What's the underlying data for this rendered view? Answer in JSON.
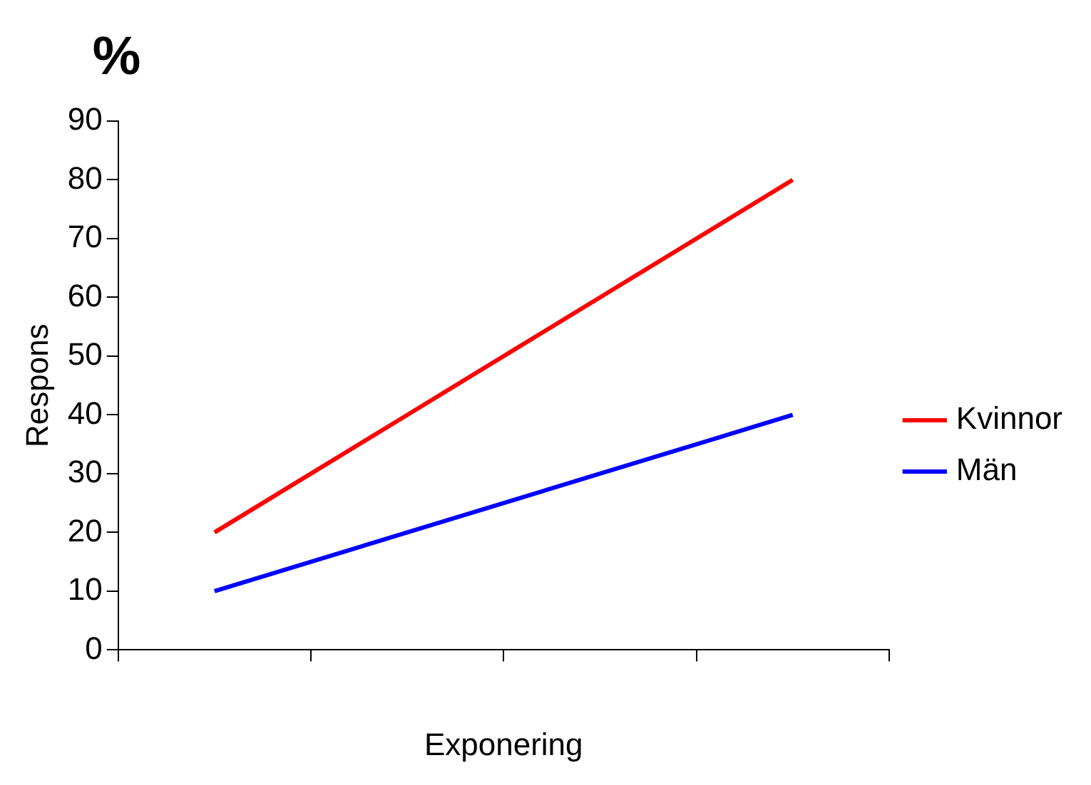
{
  "chart_data": {
    "type": "line",
    "title": "%",
    "xlabel": "Exponering",
    "ylabel": "Respons",
    "categories": [
      null,
      null,
      null,
      null
    ],
    "series": [
      {
        "name": "Kvinnor",
        "color": "#ff0000",
        "values": [
          20,
          40,
          60,
          80
        ]
      },
      {
        "name": "Män",
        "color": "#0000ff",
        "values": [
          10,
          20,
          30,
          40
        ]
      }
    ],
    "ylim": [
      0,
      90
    ],
    "yticks": [
      0,
      10,
      20,
      30,
      40,
      50,
      60,
      70,
      80,
      90
    ],
    "grid": false,
    "legend": "right",
    "marker": "none",
    "line_style": "solid"
  }
}
